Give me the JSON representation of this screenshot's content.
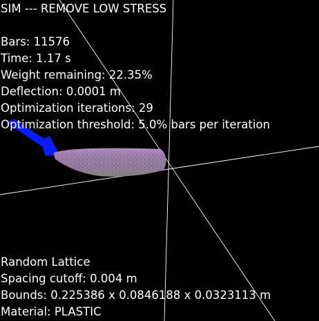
{
  "window": {
    "title": "SIM --- REMOVE LOW STRESS"
  },
  "stats": {
    "bars": "Bars: 11576",
    "time": "Time: 1.17 s",
    "weight_remaining": "Weight remaining: 22.35%",
    "deflection": "Deflection: 0.0001 m",
    "optimization_iterations": "Optimization iterations: 29",
    "optimization_threshold": "Optimization threshold: 5.0% bars per iteration"
  },
  "lattice": {
    "type": "Random Lattice",
    "spacing_cutoff": "Spacing cutoff: 0.004 m",
    "bounds": "Bounds: 0.225386 x 0.0846188 x 0.0323113 m",
    "material": "Material: PLASTIC"
  },
  "colors": {
    "background": "#000000",
    "text": "#ffffff",
    "axis_lines": "#ffffff",
    "load_arrow": "#0a1cff",
    "beam_base": "#8c6fa3",
    "beam_highlight": "#c98fd0",
    "beam_green": "#8fa36a"
  },
  "icons": {
    "load_arrow": "force-arrow-icon"
  }
}
